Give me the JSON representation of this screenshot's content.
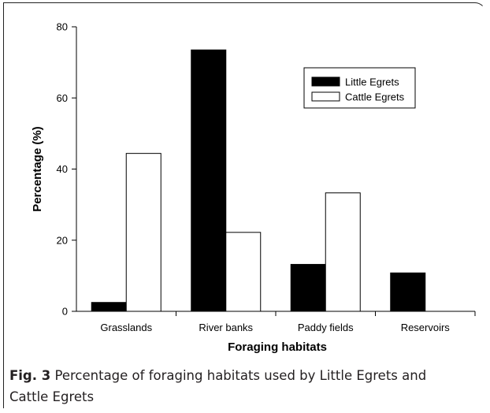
{
  "caption": {
    "label": "Fig. 3",
    "text": "Percentage of foraging habitats used by Little Egrets and Cattle Egrets"
  },
  "chart_data": {
    "type": "bar",
    "title": "",
    "xlabel": "Foraging habitats",
    "ylabel": "Percentage (%)",
    "categories": [
      "Grasslands",
      "River banks",
      "Paddy fields",
      "Reservoirs"
    ],
    "ylim": [
      0,
      80
    ],
    "yticks": [
      0,
      20,
      40,
      60,
      80
    ],
    "grid": false,
    "legend_position": "top-right",
    "series": [
      {
        "name": "Little Egrets",
        "values": [
          2.5,
          73.5,
          13.2,
          10.8
        ],
        "color": "#000000"
      },
      {
        "name": "Cattle Egrets",
        "values": [
          44.4,
          22.2,
          33.3,
          0
        ],
        "color": "#ffffff"
      }
    ]
  }
}
